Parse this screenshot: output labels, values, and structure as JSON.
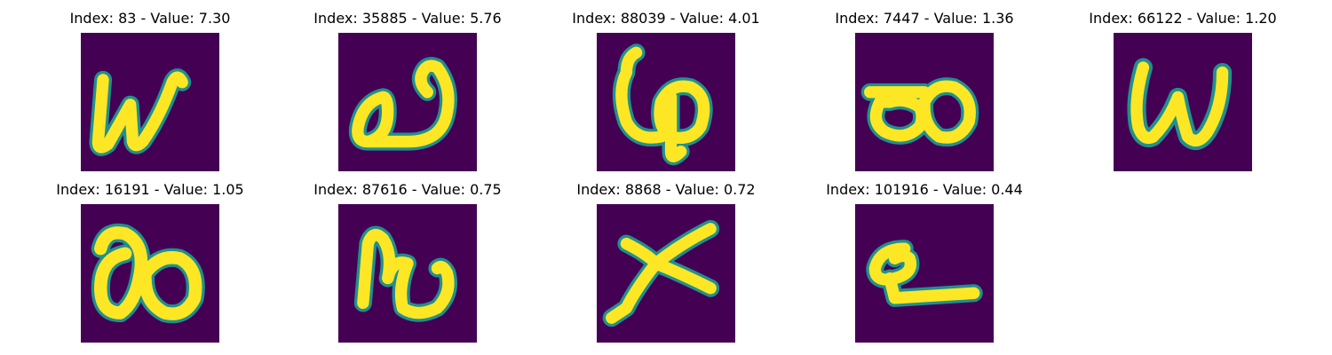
{
  "theme": {
    "background": "#440154",
    "stroke": "#fde725",
    "edge": "#21908d"
  },
  "panels": [
    {
      "title": "Index: 83 - Value: 7.30",
      "glyph": "w-glyph"
    },
    {
      "title": "Index: 35885 - Value: 5.76",
      "glyph": "loop-hook-glyph"
    },
    {
      "title": "Index: 88039 - Value: 4.01",
      "glyph": "loop-stem-glyph"
    },
    {
      "title": "Index: 7447 - Value: 1.36",
      "glyph": "double-loop-glyph"
    },
    {
      "title": "Index: 66122 - Value: 1.20",
      "glyph": "w-glyph"
    },
    {
      "title": "Index: 16191 - Value: 1.05",
      "glyph": "eight-glyph"
    },
    {
      "title": "Index: 87616 - Value: 0.75",
      "glyph": "hook-glyph"
    },
    {
      "title": "Index: 8868 - Value: 0.72",
      "glyph": "x-glyph"
    },
    {
      "title": "Index: 101916 - Value: 0.44",
      "glyph": "loop-line-glyph"
    }
  ]
}
